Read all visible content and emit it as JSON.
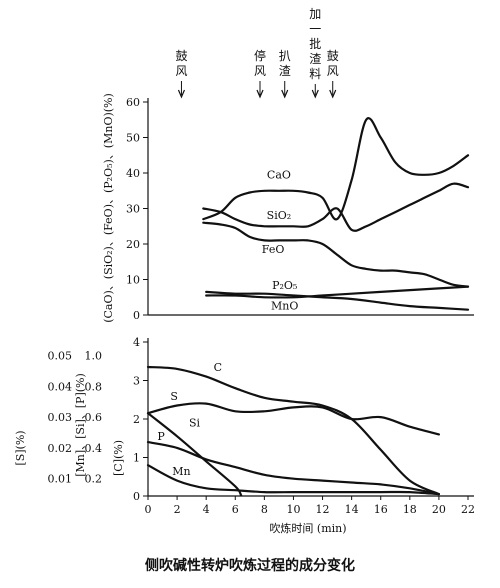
{
  "caption": "侧吹碱性转炉吹炼过程的成分变化",
  "chart_data": [
    {
      "type": "line",
      "name_panel": "upper",
      "ylabel": "(CaO)、(SiO₂)、(FeO)、(P₂O₅)、(MnO)(%)",
      "yticks": [
        "0",
        "10",
        "20",
        "30",
        "40",
        "50",
        "60"
      ],
      "ylim": [
        0,
        60
      ],
      "xlim": [
        0,
        22
      ],
      "events": [
        {
          "label": "鼓风",
          "x": 2.3
        },
        {
          "label": "停风",
          "x": 7.7
        },
        {
          "label": "扒渣",
          "x": 9.4
        },
        {
          "label": "加一批渣料",
          "x": 11.5
        },
        {
          "label": "鼓风",
          "x": 12.7
        }
      ],
      "series": [
        {
          "name": "CaO",
          "x": [
            3.8,
            5,
            6,
            7,
            8,
            9,
            10,
            11,
            12,
            13,
            14,
            15,
            16,
            17,
            18,
            19,
            20,
            21,
            22
          ],
          "y": [
            27,
            29,
            33,
            34.5,
            35,
            35,
            35,
            34.5,
            33,
            27,
            38,
            55,
            50,
            43,
            40,
            39.5,
            40,
            42,
            45
          ]
        },
        {
          "name": "SiO₂",
          "x": [
            3.8,
            5,
            6,
            7,
            8,
            9,
            10,
            11,
            12,
            13,
            14,
            15,
            16,
            17,
            18,
            19,
            20,
            21,
            22
          ],
          "y": [
            30,
            29,
            27,
            25.5,
            25,
            25,
            25,
            25,
            27,
            30,
            24,
            25,
            27,
            29,
            31,
            33,
            35,
            37,
            36
          ]
        },
        {
          "name": "FeO",
          "x": [
            3.8,
            5,
            6,
            7,
            8,
            9,
            10,
            11,
            12,
            13,
            14,
            15,
            16,
            17,
            18,
            19,
            20,
            21,
            22
          ],
          "y": [
            26,
            25.5,
            24.5,
            22,
            21,
            21,
            21,
            21,
            20,
            17,
            14,
            13,
            12.5,
            12.5,
            12,
            11.5,
            10,
            8.5,
            8
          ]
        },
        {
          "name": "P₂O₅",
          "x": [
            4,
            6,
            8,
            10,
            12,
            14,
            16,
            18,
            20,
            22
          ],
          "y": [
            5.5,
            5.5,
            5,
            5,
            5.5,
            6,
            6.5,
            7,
            7.5,
            8
          ]
        },
        {
          "name": "MnO",
          "x": [
            4,
            6,
            8,
            10,
            12,
            14,
            16,
            18,
            20,
            22
          ],
          "y": [
            6.5,
            6,
            6,
            5.5,
            5,
            4.5,
            3.5,
            2.5,
            2,
            1.5
          ]
        }
      ]
    },
    {
      "type": "line",
      "name_panel": "lower",
      "xlabel": "吹炼时间 (min)",
      "xticks": [
        "0",
        "2",
        "4",
        "6",
        "8",
        "10",
        "12",
        "14",
        "16",
        "18",
        "20",
        "22"
      ],
      "xlim": [
        0,
        22
      ],
      "y_axes": [
        {
          "label": "[S](%)",
          "ticks": [
            "0.01",
            "0.02",
            "0.03",
            "0.04",
            "0.05"
          ]
        },
        {
          "label": "[Mn]、[Si]、[P](%)",
          "ticks": [
            "0.2",
            "0.4",
            "0.6",
            "0.8",
            "1.0"
          ]
        },
        {
          "label": "[C](%)",
          "ticks": [
            "0",
            "1",
            "2",
            "3",
            "4"
          ]
        }
      ],
      "ylim": [
        0,
        4
      ],
      "series": [
        {
          "name": "C",
          "x": [
            0,
            2,
            4,
            6,
            8,
            10,
            12,
            14,
            16,
            18,
            20
          ],
          "y": [
            3.35,
            3.3,
            3.1,
            2.8,
            2.55,
            2.45,
            2.35,
            2.0,
            1.2,
            0.4,
            0.05
          ]
        },
        {
          "name": "S",
          "x": [
            0,
            2,
            4,
            6,
            8,
            10,
            12,
            14,
            16,
            18,
            20
          ],
          "y": [
            2.15,
            2.35,
            2.4,
            2.2,
            2.2,
            2.3,
            2.3,
            2.0,
            2.05,
            1.8,
            1.6
          ]
        },
        {
          "name": "Si",
          "x": [
            0,
            2,
            4,
            6,
            6.4
          ],
          "y": [
            2.15,
            1.55,
            0.9,
            0.25,
            0.02
          ]
        },
        {
          "name": "P",
          "x": [
            0,
            2,
            4,
            6,
            8,
            10,
            12,
            14,
            16,
            18,
            20
          ],
          "y": [
            1.4,
            1.25,
            0.95,
            0.75,
            0.55,
            0.45,
            0.4,
            0.35,
            0.3,
            0.2,
            0.05
          ]
        },
        {
          "name": "Mn",
          "x": [
            0,
            2,
            4,
            6,
            8,
            10,
            12,
            14,
            16,
            18,
            20
          ],
          "y": [
            0.8,
            0.4,
            0.2,
            0.15,
            0.1,
            0.1,
            0.1,
            0.1,
            0.1,
            0.1,
            0.05
          ]
        }
      ]
    }
  ]
}
